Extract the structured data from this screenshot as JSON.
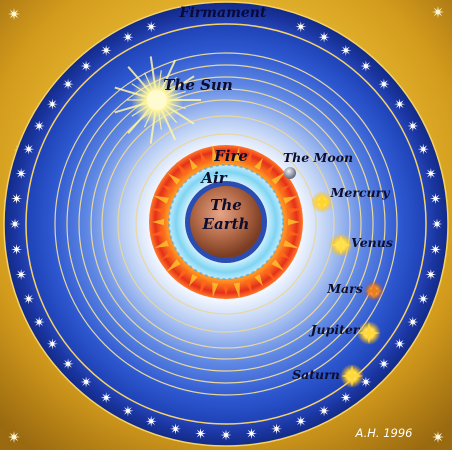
{
  "labels": {
    "firmament": "Firmament",
    "sun": "The Sun",
    "moon": "The Moon",
    "mercury": "Mercury",
    "venus": "Venus",
    "mars": "Mars",
    "jupiter": "Jupiter",
    "saturn": "Saturn",
    "fire": "Fire",
    "air": "Air",
    "earth_line1": "The",
    "earth_line2": "Earth",
    "credit": "A.H. 1996"
  },
  "colors": {
    "background_gold": "#e8b830",
    "background_gold_dark": "#a8781a",
    "firmament_band": "#1c3aa8",
    "sky_blue": "#3366e0",
    "sky_light": "#ffffff",
    "fire_red": "#e83a10",
    "fire_yellow": "#ffd23a",
    "air_cyan": "#a8e6ff",
    "earth_brown": "#b06848",
    "sun_yellow": "#fff27a",
    "label_ink": "#0d0d2e"
  },
  "firmament_star_count": 52
}
